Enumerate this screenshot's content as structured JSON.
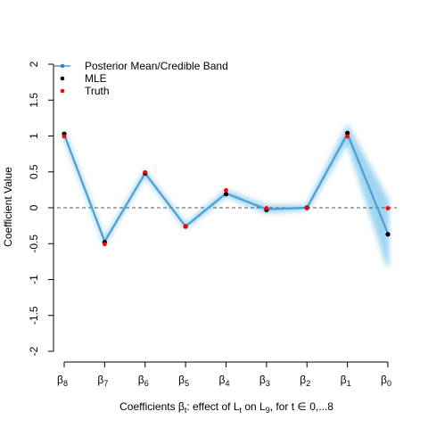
{
  "chart_data": {
    "type": "line",
    "categories": [
      "β8",
      "β7",
      "β6",
      "β5",
      "β4",
      "β3",
      "β2",
      "β1",
      "β0"
    ],
    "tick_labels": [
      {
        "base": "β",
        "sub": "8"
      },
      {
        "base": "β",
        "sub": "7"
      },
      {
        "base": "β",
        "sub": "6"
      },
      {
        "base": "β",
        "sub": "5"
      },
      {
        "base": "β",
        "sub": "4"
      },
      {
        "base": "β",
        "sub": "3"
      },
      {
        "base": "β",
        "sub": "2"
      },
      {
        "base": "β",
        "sub": "1"
      },
      {
        "base": "β",
        "sub": "0"
      }
    ],
    "series": [
      {
        "name": "Posterior Mean/Credible Band",
        "values": [
          1.02,
          -0.47,
          0.48,
          -0.26,
          0.2,
          -0.02,
          0.0,
          1.03,
          -0.36
        ],
        "band_lower": [
          1.0,
          -0.49,
          0.46,
          -0.28,
          0.17,
          -0.06,
          -0.02,
          0.93,
          -0.82
        ],
        "band_upper": [
          1.04,
          -0.45,
          0.5,
          -0.24,
          0.23,
          0.02,
          0.02,
          1.13,
          0.1
        ]
      },
      {
        "name": "MLE",
        "values": [
          1.03,
          -0.48,
          0.48,
          -0.26,
          0.19,
          -0.03,
          0.0,
          1.04,
          -0.37
        ]
      },
      {
        "name": "Truth",
        "values": [
          1.0,
          -0.5,
          0.5,
          -0.25,
          0.25,
          0.0,
          0.0,
          1.0,
          0.0
        ]
      }
    ],
    "ylabel": "Coefficient Value",
    "xlabel": {
      "prefix": "Coefficients β",
      "prefix_sub": "t",
      "mid": ": effect of L",
      "mid_sub": "t",
      "mid2": " on L",
      "mid2_sub": "9",
      "suffix": ", for t ∈ 0,...8"
    },
    "ylim": [
      -2,
      2
    ],
    "yticks": [
      "-2",
      "-1.5",
      "-1",
      "-0.5",
      "0",
      "0.5",
      "1",
      "1.5",
      "2"
    ],
    "reference_line": 0,
    "legend": {
      "position": "top-left",
      "items": [
        {
          "label": "Posterior Mean/Credible Band",
          "marker": "line-point",
          "color": "#3b7fc4"
        },
        {
          "label": "MLE",
          "marker": "point",
          "color": "#000000"
        },
        {
          "label": "Truth",
          "marker": "point",
          "color": "#ff0000"
        }
      ]
    },
    "colors": {
      "mean": "#4a9fd6",
      "band": "#7fc6ec",
      "mle": "#000000",
      "truth": "#ff0000",
      "reference": "#555555"
    }
  }
}
